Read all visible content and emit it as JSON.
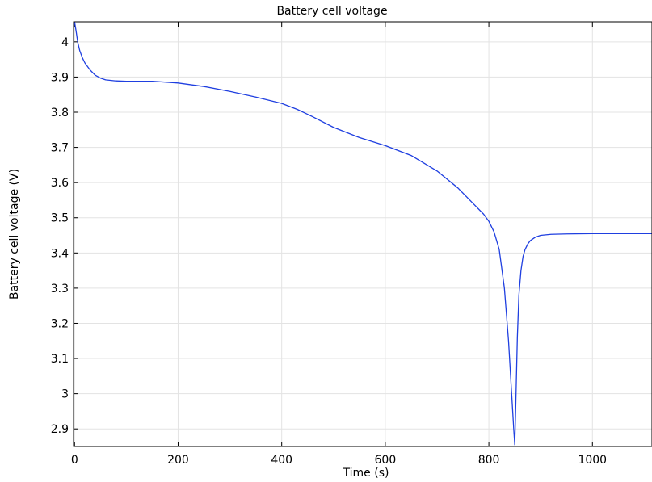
{
  "chart_data": {
    "type": "line",
    "title": "Battery cell voltage",
    "xlabel": "Time (s)",
    "ylabel": "Battery cell voltage (V)",
    "xlim": [
      -2,
      1115
    ],
    "ylim": [
      2.85,
      4.057
    ],
    "xticks": [
      0,
      200,
      400,
      600,
      800,
      1000
    ],
    "yticks": [
      2.9,
      3.0,
      3.1,
      3.2,
      3.3,
      3.4,
      3.5,
      3.6,
      3.7,
      3.8,
      3.9,
      4.0
    ],
    "xtick_labels": [
      "0",
      "200",
      "400",
      "600",
      "800",
      "1000"
    ],
    "ytick_labels": [
      "2.9",
      "3",
      "3.1",
      "3.2",
      "3.3",
      "3.4",
      "3.5",
      "3.6",
      "3.7",
      "3.8",
      "3.9",
      "4"
    ],
    "grid": true,
    "line_color": "#1f3fe0",
    "series": [
      {
        "x": [
          0,
          3,
          6,
          10,
          15,
          20,
          30,
          40,
          50,
          60,
          80,
          100,
          150,
          200,
          250,
          300,
          350,
          400,
          430,
          460,
          500,
          550,
          600,
          650,
          700,
          740,
          770,
          790,
          800,
          810,
          820,
          830,
          838,
          844,
          848,
          850,
          852,
          855,
          858,
          862,
          866,
          870,
          875,
          880,
          890,
          900,
          920,
          950,
          1000,
          1050,
          1115
        ],
        "y": [
          4.057,
          4.03,
          4.0,
          3.975,
          3.955,
          3.94,
          3.92,
          3.905,
          3.897,
          3.892,
          3.889,
          3.888,
          3.888,
          3.883,
          3.873,
          3.859,
          3.843,
          3.825,
          3.808,
          3.787,
          3.757,
          3.728,
          3.705,
          3.677,
          3.633,
          3.585,
          3.54,
          3.51,
          3.49,
          3.46,
          3.41,
          3.3,
          3.15,
          3.0,
          2.9,
          2.855,
          2.97,
          3.16,
          3.28,
          3.35,
          3.39,
          3.41,
          3.425,
          3.435,
          3.445,
          3.45,
          3.453,
          3.454,
          3.455,
          3.455,
          3.455
        ]
      }
    ]
  }
}
